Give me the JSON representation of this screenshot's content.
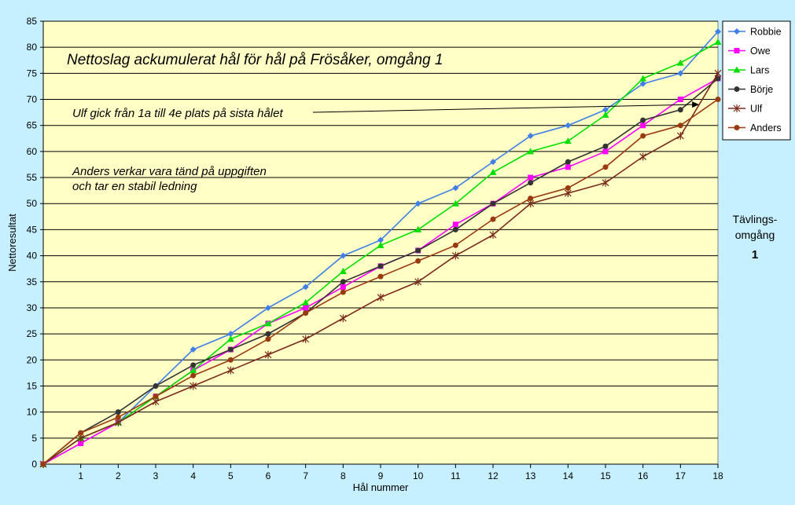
{
  "chart_data": {
    "type": "line",
    "title": "Nettoslag ackumulerat hål för hål på Frösåker, omgång 1",
    "xlabel": "Hål nummer",
    "ylabel": "Nettoresultat",
    "x": [
      0,
      1,
      2,
      3,
      4,
      5,
      6,
      7,
      8,
      9,
      10,
      11,
      12,
      13,
      14,
      15,
      16,
      17,
      18
    ],
    "ylim": [
      0,
      85
    ],
    "yticks": [
      0,
      5,
      10,
      15,
      20,
      25,
      30,
      35,
      40,
      45,
      50,
      55,
      60,
      65,
      70,
      75,
      80,
      85
    ],
    "grid": true,
    "legend_position": "top-right",
    "series": [
      {
        "name": "Robbie",
        "color": "#3f7fe6",
        "marker": "diamond",
        "values": [
          0,
          4,
          8,
          15,
          22,
          25,
          30,
          34,
          40,
          43,
          50,
          53,
          58,
          63,
          65,
          68,
          73,
          75,
          83
        ]
      },
      {
        "name": "Owe",
        "color": "#ff00ff",
        "marker": "square",
        "values": [
          0,
          4,
          8,
          13,
          18,
          22,
          27,
          30,
          34,
          38,
          41,
          46,
          50,
          55,
          57,
          60,
          65,
          70,
          74
        ]
      },
      {
        "name": "Lars",
        "color": "#00e000",
        "marker": "triangle",
        "values": [
          0,
          5,
          8,
          13,
          18,
          24,
          27,
          31,
          37,
          42,
          45,
          50,
          56,
          60,
          62,
          67,
          74,
          77,
          81
        ]
      },
      {
        "name": "Börje",
        "color": "#333333",
        "marker": "circle",
        "values": [
          0,
          6,
          10,
          15,
          19,
          22,
          25,
          29,
          35,
          38,
          41,
          45,
          50,
          54,
          58,
          61,
          66,
          68,
          74
        ]
      },
      {
        "name": "Ulf",
        "color": "#7a2a1a",
        "marker": "star",
        "values": [
          0,
          5,
          8,
          12,
          15,
          18,
          21,
          24,
          28,
          32,
          35,
          40,
          44,
          50,
          52,
          54,
          59,
          63,
          75
        ]
      },
      {
        "name": "Anders",
        "color": "#9a3a10",
        "marker": "circle",
        "values": [
          0,
          6,
          9,
          13,
          17,
          20,
          24,
          29,
          33,
          36,
          39,
          42,
          47,
          51,
          53,
          57,
          63,
          65,
          70
        ]
      }
    ],
    "annotations": [
      {
        "text": "Ulf gick från 1a till 4e plats på sista hålet",
        "arrow_to": [
          17.5,
          69
        ]
      },
      {
        "text": "Anders verkar vara tänd på uppgiften"
      },
      {
        "text": "och tar en stabil ledning"
      }
    ],
    "side_note": [
      "Tävlings-",
      "omgång",
      "1"
    ]
  }
}
